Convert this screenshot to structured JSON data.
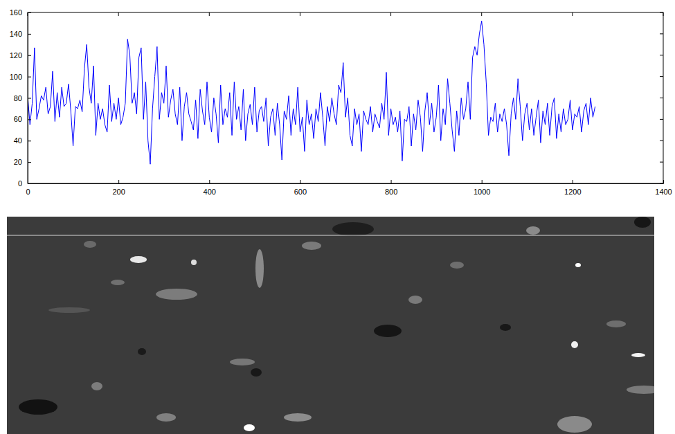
{
  "chart_data": {
    "type": "line",
    "color": "#0000ff",
    "grid": false,
    "xlim": [
      0,
      1400
    ],
    "ylim": [
      0,
      160
    ],
    "xticks": [
      0,
      200,
      400,
      600,
      800,
      1000,
      1200,
      1400
    ],
    "yticks": [
      0,
      20,
      40,
      60,
      80,
      100,
      120,
      140,
      160
    ],
    "x": [
      0,
      5,
      10,
      15,
      20,
      25,
      30,
      35,
      40,
      45,
      50,
      55,
      60,
      65,
      70,
      75,
      80,
      85,
      90,
      95,
      100,
      105,
      110,
      115,
      120,
      125,
      130,
      135,
      140,
      145,
      150,
      155,
      160,
      165,
      170,
      175,
      180,
      185,
      190,
      195,
      200,
      205,
      210,
      215,
      220,
      225,
      230,
      235,
      240,
      245,
      250,
      255,
      260,
      265,
      270,
      275,
      280,
      285,
      290,
      295,
      300,
      305,
      310,
      315,
      320,
      325,
      330,
      335,
      340,
      345,
      350,
      355,
      360,
      365,
      370,
      375,
      380,
      385,
      390,
      395,
      400,
      405,
      410,
      415,
      420,
      425,
      430,
      435,
      440,
      445,
      450,
      455,
      460,
      465,
      470,
      475,
      480,
      485,
      490,
      495,
      500,
      505,
      510,
      515,
      520,
      525,
      530,
      535,
      540,
      545,
      550,
      555,
      560,
      565,
      570,
      575,
      580,
      585,
      590,
      595,
      600,
      605,
      610,
      615,
      620,
      625,
      630,
      635,
      640,
      645,
      650,
      655,
      660,
      665,
      670,
      675,
      680,
      685,
      690,
      695,
      700,
      705,
      710,
      715,
      720,
      725,
      730,
      735,
      740,
      745,
      750,
      755,
      760,
      765,
      770,
      775,
      780,
      785,
      790,
      795,
      800,
      805,
      810,
      815,
      820,
      825,
      830,
      835,
      840,
      845,
      850,
      855,
      860,
      865,
      870,
      875,
      880,
      885,
      890,
      895,
      900,
      905,
      910,
      915,
      920,
      925,
      930,
      935,
      940,
      945,
      950,
      955,
      960,
      965,
      970,
      975,
      980,
      985,
      990,
      995,
      1000,
      1005,
      1010,
      1015,
      1020,
      1025,
      1030,
      1035,
      1040,
      1045,
      1050,
      1055,
      1060,
      1065,
      1070,
      1075,
      1080,
      1085,
      1090,
      1095,
      1100,
      1105,
      1110,
      1115,
      1120,
      1125,
      1130,
      1135,
      1140,
      1145,
      1150,
      1155,
      1160,
      1165,
      1170,
      1175,
      1180,
      1185,
      1190,
      1195,
      1200,
      1205,
      1210,
      1215,
      1220,
      1225,
      1230,
      1235,
      1240,
      1245,
      1250
    ],
    "values": [
      82,
      55,
      75,
      127,
      60,
      70,
      82,
      78,
      90,
      65,
      72,
      105,
      58,
      85,
      62,
      90,
      72,
      75,
      93,
      68,
      35,
      72,
      70,
      78,
      67,
      108,
      130,
      90,
      75,
      110,
      45,
      75,
      60,
      70,
      55,
      48,
      92,
      58,
      75,
      60,
      80,
      55,
      62,
      75,
      135,
      120,
      75,
      85,
      65,
      118,
      127,
      60,
      95,
      40,
      18,
      70,
      100,
      128,
      60,
      85,
      75,
      110,
      62,
      78,
      88,
      65,
      55,
      90,
      40,
      72,
      85,
      65,
      58,
      50,
      78,
      42,
      88,
      68,
      55,
      95,
      62,
      48,
      80,
      65,
      38,
      92,
      55,
      70,
      62,
      85,
      45,
      95,
      60,
      72,
      50,
      88,
      40,
      65,
      74,
      55,
      90,
      48,
      68,
      72,
      58,
      80,
      35,
      62,
      70,
      45,
      75,
      55,
      22,
      68,
      60,
      82,
      45,
      70,
      55,
      90,
      48,
      62,
      30,
      78,
      55,
      65,
      42,
      70,
      58,
      85,
      62,
      35,
      72,
      58,
      80,
      65,
      55,
      92,
      85,
      113,
      62,
      80,
      45,
      35,
      70,
      55,
      65,
      30,
      68,
      60,
      55,
      72,
      48,
      65,
      58,
      52,
      75,
      60,
      104,
      45,
      70,
      55,
      62,
      48,
      68,
      21,
      60,
      58,
      72,
      35,
      65,
      50,
      78,
      62,
      30,
      68,
      85,
      55,
      75,
      48,
      62,
      92,
      40,
      70,
      55,
      98,
      75,
      50,
      30,
      68,
      45,
      80,
      60,
      70,
      95,
      60,
      118,
      128,
      120,
      140,
      152,
      130,
      95,
      45,
      62,
      58,
      75,
      48,
      65,
      58,
      70,
      55,
      26,
      65,
      80,
      60,
      98,
      72,
      40,
      65,
      75,
      50,
      70,
      45,
      62,
      78,
      38,
      68,
      55,
      75,
      45,
      72,
      80,
      42,
      65,
      48,
      70,
      55,
      60,
      78,
      50,
      65,
      62,
      72,
      48,
      68,
      75,
      55,
      80,
      62,
      72
    ]
  }
}
